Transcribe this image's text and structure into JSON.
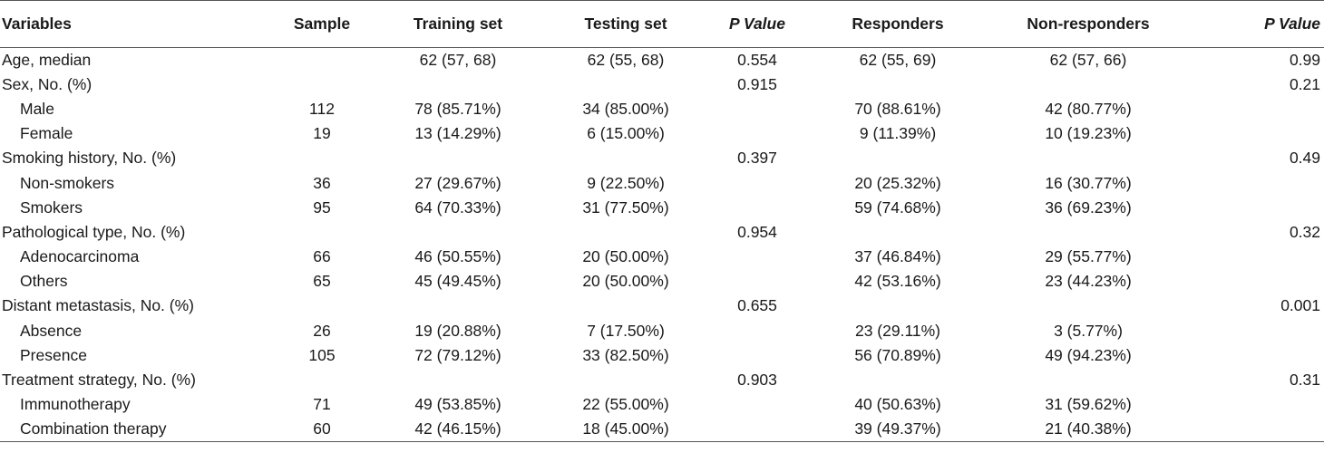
{
  "headers": {
    "variables": "Variables",
    "sample": "Sample",
    "training": "Training set",
    "testing": "Testing set",
    "pvalue1": "P Value",
    "responders": "Responders",
    "nonresponders": "Non-responders",
    "pvalue2": "P Value"
  },
  "rows": [
    {
      "label": "Age, median",
      "sample": "",
      "training": "62 (57, 68)",
      "testing": "62 (55, 68)",
      "p1": "0.554",
      "responders": "62 (55, 69)",
      "nonresponders": "62 (57, 66)",
      "p2": "0.99"
    },
    {
      "label": "Sex, No. (%)",
      "sample": "",
      "training": "",
      "testing": "",
      "p1": "0.915",
      "responders": "",
      "nonresponders": "",
      "p2": "0.21"
    },
    {
      "label": "Male",
      "sample": "112",
      "training": "78 (85.71%)",
      "testing": "34 (85.00%)",
      "p1": "",
      "responders": "70 (88.61%)",
      "nonresponders": "42 (80.77%)",
      "p2": ""
    },
    {
      "label": "Female",
      "sample": "19",
      "training": "13 (14.29%)",
      "testing": "6 (15.00%)",
      "p1": "",
      "responders": "9 (11.39%)",
      "nonresponders": "10 (19.23%)",
      "p2": ""
    },
    {
      "label": "Smoking history, No. (%)",
      "sample": "",
      "training": "",
      "testing": "",
      "p1": "0.397",
      "responders": "",
      "nonresponders": "",
      "p2": "0.49"
    },
    {
      "label": "Non-smokers",
      "sample": "36",
      "training": "27 (29.67%)",
      "testing": "9 (22.50%)",
      "p1": "",
      "responders": "20 (25.32%)",
      "nonresponders": "16 (30.77%)",
      "p2": ""
    },
    {
      "label": "Smokers",
      "sample": "95",
      "training": "64 (70.33%)",
      "testing": "31 (77.50%)",
      "p1": "",
      "responders": "59 (74.68%)",
      "nonresponders": "36 (69.23%)",
      "p2": ""
    },
    {
      "label": "Pathological type, No. (%)",
      "sample": "",
      "training": "",
      "testing": "",
      "p1": "0.954",
      "responders": "",
      "nonresponders": "",
      "p2": "0.32"
    },
    {
      "label": "Adenocarcinoma",
      "sample": "66",
      "training": "46 (50.55%)",
      "testing": "20 (50.00%)",
      "p1": "",
      "responders": "37 (46.84%)",
      "nonresponders": "29 (55.77%)",
      "p2": ""
    },
    {
      "label": "Others",
      "sample": "65",
      "training": "45 (49.45%)",
      "testing": "20 (50.00%)",
      "p1": "",
      "responders": "42 (53.16%)",
      "nonresponders": "23 (44.23%)",
      "p2": ""
    },
    {
      "label": "Distant metastasis, No. (%)",
      "sample": "",
      "training": "",
      "testing": "",
      "p1": "0.655",
      "responders": "",
      "nonresponders": "",
      "p2": "0.001"
    },
    {
      "label": "Absence",
      "sample": "26",
      "training": "19 (20.88%)",
      "testing": "7 (17.50%)",
      "p1": "",
      "responders": "23 (29.11%)",
      "nonresponders": "3 (5.77%)",
      "p2": ""
    },
    {
      "label": "Presence",
      "sample": "105",
      "training": "72 (79.12%)",
      "testing": "33 (82.50%)",
      "p1": "",
      "responders": "56 (70.89%)",
      "nonresponders": "49 (94.23%)",
      "p2": ""
    },
    {
      "label": "Treatment strategy, No. (%)",
      "sample": "",
      "training": "",
      "testing": "",
      "p1": "0.903",
      "responders": "",
      "nonresponders": "",
      "p2": "0.31"
    },
    {
      "label": "Immunotherapy",
      "sample": "71",
      "training": "49 (53.85%)",
      "testing": "22 (55.00%)",
      "p1": "",
      "responders": "40 (50.63%)",
      "nonresponders": "31 (59.62%)",
      "p2": ""
    },
    {
      "label": "Combination therapy",
      "sample": "60",
      "training": "42 (46.15%)",
      "testing": "18 (45.00%)",
      "p1": "",
      "responders": "39 (49.37%)",
      "nonresponders": "21 (40.38%)",
      "p2": ""
    }
  ]
}
